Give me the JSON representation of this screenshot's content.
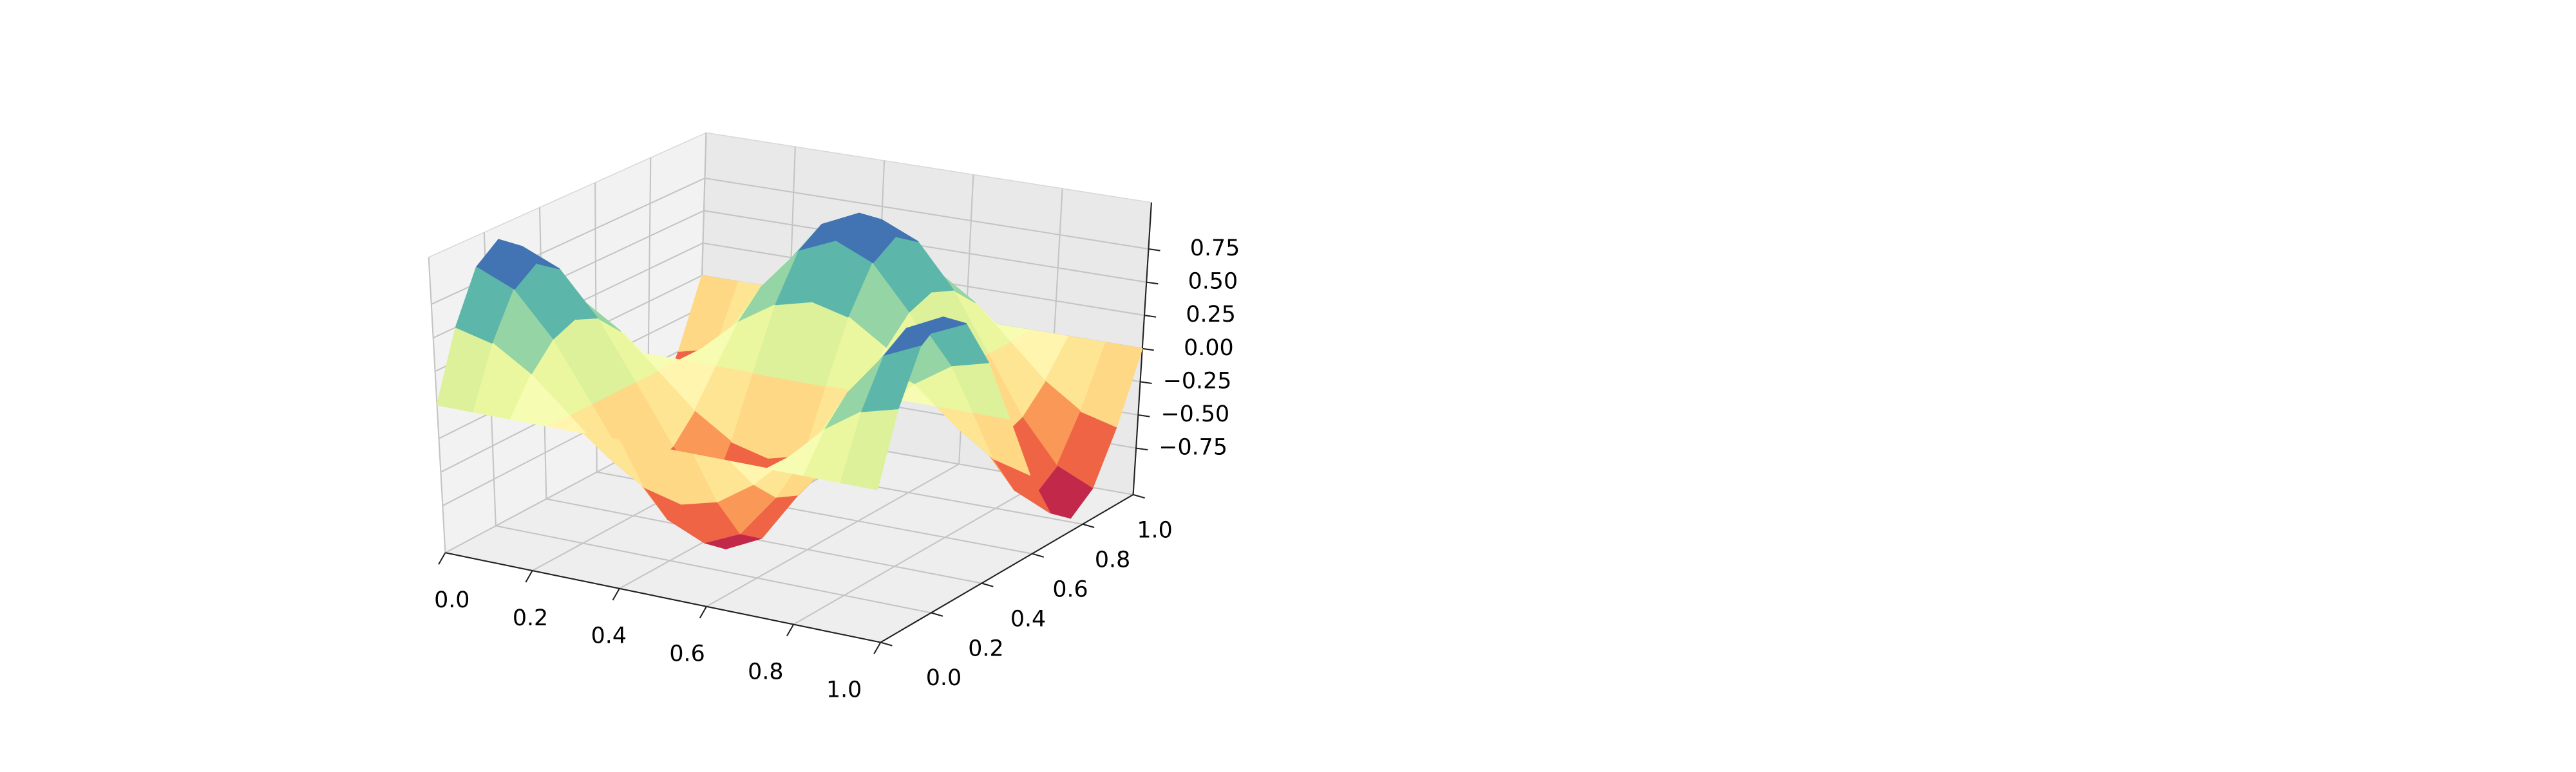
{
  "chart_data": {
    "type": "surface",
    "colormap": "Spectral",
    "x": [
      0,
      0.083,
      0.167,
      0.25,
      0.333,
      0.417,
      0.5,
      0.583,
      0.667,
      0.75,
      0.833,
      0.917,
      1
    ],
    "y": [
      0,
      0.083,
      0.167,
      0.25,
      0.333,
      0.417,
      0.5,
      0.583,
      0.667,
      0.75,
      0.833,
      0.917,
      1
    ],
    "z": [
      [
        0,
        0,
        0,
        0,
        0,
        0,
        0,
        0,
        0,
        0,
        0,
        0,
        0
      ],
      [
        0.5,
        0.43,
        0.25,
        0,
        -0.25,
        -0.43,
        -0.5,
        -0.43,
        -0.25,
        0,
        0.25,
        0.43,
        0.5
      ],
      [
        0.87,
        0.75,
        0.43,
        0,
        -0.43,
        -0.75,
        -0.87,
        -0.75,
        -0.43,
        0,
        0.43,
        0.75,
        0.87
      ],
      [
        1,
        0.87,
        0.5,
        0,
        -0.5,
        -0.87,
        -1,
        -0.87,
        -0.5,
        0,
        0.5,
        0.87,
        1
      ],
      [
        0.87,
        0.75,
        0.43,
        0,
        -0.43,
        -0.75,
        -0.87,
        -0.75,
        -0.43,
        0,
        0.43,
        0.75,
        0.87
      ],
      [
        0.5,
        0.43,
        0.25,
        0,
        -0.25,
        -0.43,
        -0.5,
        -0.43,
        -0.25,
        0,
        0.25,
        0.43,
        0.5
      ],
      [
        0,
        0,
        0,
        0,
        0,
        0,
        0,
        0,
        0,
        0,
        0,
        0,
        0
      ],
      [
        -0.5,
        -0.43,
        -0.25,
        0,
        0.25,
        0.43,
        0.5,
        0.43,
        0.25,
        0,
        -0.25,
        -0.43,
        -0.5
      ],
      [
        -0.87,
        -0.75,
        -0.43,
        0,
        0.43,
        0.75,
        0.87,
        0.75,
        0.43,
        0,
        -0.43,
        -0.75,
        -0.87
      ],
      [
        -1,
        -0.87,
        -0.5,
        0,
        0.5,
        0.87,
        1,
        0.87,
        0.5,
        0,
        -0.5,
        -0.87,
        -1
      ],
      [
        -0.87,
        -0.75,
        -0.43,
        0,
        0.43,
        0.75,
        0.87,
        0.75,
        0.43,
        0,
        -0.43,
        -0.75,
        -0.87
      ],
      [
        -0.5,
        -0.43,
        -0.25,
        0,
        0.25,
        0.43,
        0.5,
        0.43,
        0.25,
        0,
        -0.25,
        -0.43,
        -0.5
      ],
      [
        0,
        0,
        0,
        0,
        0,
        0,
        0,
        0,
        0,
        0,
        0,
        0,
        0
      ]
    ],
    "xlim": [
      0,
      1
    ],
    "ylim": [
      0,
      1
    ],
    "zlim": [
      -1.1,
      1.1
    ],
    "xticks": [
      {
        "value": 0,
        "label": "0.0"
      },
      0.2,
      0.4,
      0.6,
      0.8,
      {
        "value": 1,
        "label": "1.0"
      }
    ],
    "yticks": [
      {
        "value": 0,
        "label": "0.0"
      },
      0.2,
      0.4,
      0.6,
      0.8,
      {
        "value": 1,
        "label": "1.0"
      }
    ],
    "zticks": [
      {
        "value": -0.75,
        "label": "−0.75"
      },
      {
        "value": -0.5,
        "label": "−0.50"
      },
      {
        "value": -0.25,
        "label": "−0.25"
      },
      {
        "value": 0,
        "label": "0.00"
      },
      0.25,
      {
        "value": 0.5,
        "label": "0.50"
      },
      0.75
    ],
    "grid": true
  }
}
